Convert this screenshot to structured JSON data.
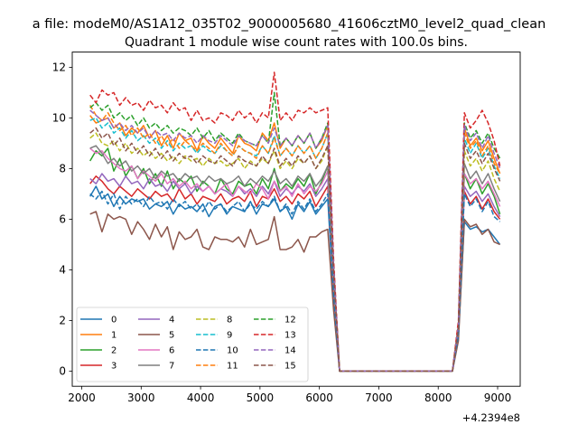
{
  "figure": {
    "suptitle": "a file: modeM0/AS1A12_035T02_9000005680_41606cztM0_level2_quad_clean",
    "title": "Quadrant 1 module wise count rates with 100.0s bins.",
    "offset_label": "+4.2394e8"
  },
  "chart_data": {
    "type": "line",
    "title": "Quadrant 1 module wise count rates with 100.0s bins.",
    "xlabel": "",
    "ylabel": "",
    "x_offset": 423940000,
    "xlim": [
      1840,
      9380
    ],
    "ylim": [
      -0.6,
      12.6
    ],
    "xticks": [
      2000,
      3000,
      4000,
      5000,
      6000,
      7000,
      8000,
      9000
    ],
    "yticks": [
      0,
      2,
      4,
      6,
      8,
      10,
      12
    ],
    "legend": "bottom-left",
    "grid": false,
    "x": [
      2140,
      2240,
      2340,
      2440,
      2540,
      2640,
      2740,
      2840,
      2940,
      3040,
      3140,
      3240,
      3340,
      3440,
      3540,
      3640,
      3740,
      3840,
      3940,
      4040,
      4140,
      4240,
      4340,
      4440,
      4540,
      4640,
      4740,
      4840,
      4940,
      5040,
      5140,
      5240,
      5340,
      5440,
      5540,
      5640,
      5740,
      5840,
      5940,
      6040,
      6140,
      6240,
      6340,
      6440,
      6540,
      6640,
      6740,
      6840,
      6940,
      7040,
      7140,
      7240,
      7340,
      7440,
      7540,
      7640,
      7740,
      7840,
      7940,
      8040,
      8140,
      8240,
      8340,
      8440,
      8540,
      8640,
      8740,
      8840,
      8940,
      9040
    ],
    "zero_segment": {
      "from_x": 6340,
      "to_x": 8240,
      "value": 0
    },
    "series": [
      {
        "name": "0",
        "color": "#1f77b4",
        "dash": "solid",
        "values": [
          6.9,
          7.3,
          6.8,
          7.0,
          6.5,
          6.9,
          6.6,
          6.8,
          6.7,
          6.8,
          6.4,
          6.6,
          6.5,
          6.7,
          6.2,
          6.6,
          6.4,
          6.5,
          6.3,
          6.6,
          6.1,
          6.5,
          6.6,
          6.2,
          6.5,
          6.4,
          6.3,
          6.7,
          6.2,
          6.6,
          6.5,
          6.8,
          6.3,
          6.5,
          6.0,
          6.6,
          6.3,
          6.7,
          6.2,
          6.5,
          6.8,
          2.9,
          0,
          0,
          0,
          0,
          0,
          0,
          0,
          0,
          0,
          0,
          0,
          0,
          0,
          0,
          0,
          0,
          0,
          0,
          0,
          0,
          1.4,
          5.9,
          5.6,
          5.7,
          5.5,
          5.6,
          5.3,
          5.0
        ]
      },
      {
        "name": "1",
        "color": "#ff7f0e",
        "dash": "solid",
        "values": [
          10.1,
          9.8,
          9.9,
          10.0,
          9.6,
          9.8,
          9.3,
          9.6,
          9.4,
          9.7,
          9.2,
          9.5,
          8.9,
          9.3,
          8.8,
          9.4,
          9.1,
          9.2,
          8.7,
          9.3,
          9.0,
          8.8,
          9.2,
          8.9,
          8.6,
          9.3,
          9.0,
          8.9,
          8.7,
          9.4,
          9.1,
          9.8,
          8.8,
          9.2,
          8.9,
          9.3,
          9.0,
          9.4,
          8.8,
          9.1,
          9.7,
          3.7,
          0,
          0,
          0,
          0,
          0,
          0,
          0,
          0,
          0,
          0,
          0,
          0,
          0,
          0,
          0,
          0,
          0,
          0,
          0,
          0,
          1.8,
          9.6,
          8.9,
          9.2,
          8.7,
          9.1,
          8.4,
          7.8
        ]
      },
      {
        "name": "2",
        "color": "#2ca02c",
        "dash": "solid",
        "values": [
          8.3,
          8.7,
          8.5,
          8.8,
          7.9,
          8.4,
          7.7,
          8.1,
          7.6,
          8.0,
          7.4,
          7.8,
          7.3,
          7.9,
          7.2,
          7.6,
          7.4,
          7.7,
          7.1,
          7.5,
          7.3,
          7.0,
          7.6,
          7.2,
          7.0,
          7.5,
          7.3,
          7.4,
          7.0,
          7.6,
          7.2,
          8.0,
          7.1,
          7.4,
          7.2,
          7.6,
          7.3,
          7.8,
          7.0,
          7.5,
          8.1,
          3.4,
          0,
          0,
          0,
          0,
          0,
          0,
          0,
          0,
          0,
          0,
          0,
          0,
          0,
          0,
          0,
          0,
          0,
          0,
          0,
          0,
          1.6,
          7.8,
          7.2,
          7.6,
          7.0,
          7.4,
          6.9,
          6.2
        ]
      },
      {
        "name": "3",
        "color": "#d62728",
        "dash": "solid",
        "values": [
          7.4,
          7.7,
          7.5,
          7.2,
          7.0,
          7.3,
          7.1,
          6.9,
          7.2,
          7.0,
          6.8,
          7.1,
          6.9,
          7.0,
          6.7,
          7.2,
          6.8,
          7.0,
          6.6,
          6.9,
          6.8,
          6.7,
          7.0,
          6.6,
          6.8,
          6.9,
          6.7,
          7.1,
          6.5,
          6.9,
          6.8,
          7.2,
          6.7,
          6.9,
          6.6,
          7.0,
          6.8,
          7.1,
          6.5,
          6.9,
          7.3,
          3.1,
          0,
          0,
          0,
          0,
          0,
          0,
          0,
          0,
          0,
          0,
          0,
          0,
          0,
          0,
          0,
          0,
          0,
          0,
          0,
          0,
          1.5,
          7.1,
          6.6,
          6.9,
          6.4,
          6.8,
          6.3,
          6.0
        ]
      },
      {
        "name": "4",
        "color": "#9467bd",
        "dash": "solid",
        "values": [
          7.6,
          7.4,
          7.8,
          7.5,
          7.6,
          7.3,
          7.7,
          7.4,
          7.5,
          7.2,
          7.6,
          7.3,
          7.4,
          7.1,
          7.5,
          7.2,
          7.4,
          7.0,
          7.3,
          7.1,
          7.3,
          7.0,
          7.2,
          7.1,
          6.9,
          7.3,
          7.0,
          7.2,
          6.9,
          7.3,
          7.0,
          7.5,
          6.9,
          7.2,
          7.0,
          7.3,
          7.1,
          7.4,
          6.9,
          7.2,
          7.6,
          3.2,
          0,
          0,
          0,
          0,
          0,
          0,
          0,
          0,
          0,
          0,
          0,
          0,
          0,
          0,
          0,
          0,
          0,
          0,
          0,
          0,
          1.5,
          7.3,
          6.9,
          7.1,
          6.7,
          7.0,
          6.5,
          6.1
        ]
      },
      {
        "name": "5",
        "color": "#8c564b",
        "dash": "solid",
        "values": [
          6.2,
          6.3,
          5.5,
          6.2,
          6.0,
          6.1,
          6.0,
          5.4,
          5.9,
          5.6,
          5.2,
          5.8,
          5.3,
          5.7,
          4.8,
          5.5,
          5.2,
          5.3,
          5.6,
          4.9,
          4.8,
          5.3,
          5.2,
          5.2,
          5.1,
          5.3,
          4.9,
          5.6,
          5.0,
          5.1,
          5.2,
          6.1,
          4.8,
          4.8,
          4.9,
          5.2,
          4.7,
          5.3,
          5.3,
          5.5,
          5.6,
          2.4,
          0,
          0,
          0,
          0,
          0,
          0,
          0,
          0,
          0,
          0,
          0,
          0,
          0,
          0,
          0,
          0,
          0,
          0,
          0,
          0,
          1.2,
          6.0,
          5.7,
          5.8,
          5.4,
          5.6,
          5.1,
          5.0
        ]
      },
      {
        "name": "6",
        "color": "#e377c2",
        "dash": "solid",
        "values": [
          8.8,
          8.6,
          8.7,
          8.4,
          8.2,
          8.0,
          7.9,
          8.1,
          7.6,
          7.9,
          7.7,
          7.5,
          7.8,
          7.4,
          7.6,
          7.3,
          7.5,
          7.2,
          7.4,
          7.1,
          7.3,
          7.0,
          7.2,
          7.4,
          6.9,
          7.3,
          7.1,
          7.0,
          7.4,
          7.2,
          6.8,
          7.5,
          7.1,
          7.3,
          6.9,
          7.4,
          7.0,
          7.3,
          7.1,
          7.4,
          7.9,
          3.4,
          0,
          0,
          0,
          0,
          0,
          0,
          0,
          0,
          0,
          0,
          0,
          0,
          0,
          0,
          0,
          0,
          0,
          0,
          0,
          0,
          1.6,
          7.8,
          7.4,
          7.6,
          7.2,
          7.5,
          7.0,
          6.5
        ]
      },
      {
        "name": "7",
        "color": "#7f7f7f",
        "dash": "solid",
        "values": [
          8.8,
          8.9,
          8.6,
          8.2,
          8.4,
          8.1,
          8.3,
          7.9,
          8.1,
          7.8,
          8.0,
          7.6,
          7.9,
          7.7,
          7.8,
          7.5,
          7.8,
          7.6,
          7.7,
          7.4,
          7.7,
          7.5,
          7.6,
          7.4,
          7.5,
          7.7,
          7.3,
          7.6,
          7.4,
          7.7,
          7.5,
          7.9,
          7.4,
          7.6,
          7.3,
          7.7,
          7.5,
          7.8,
          7.3,
          7.6,
          8.1,
          3.5,
          0,
          0,
          0,
          0,
          0,
          0,
          0,
          0,
          0,
          0,
          0,
          0,
          0,
          0,
          0,
          0,
          0,
          0,
          0,
          0,
          1.6,
          8.2,
          7.6,
          7.9,
          7.4,
          7.8,
          7.2,
          6.7
        ]
      },
      {
        "name": "8",
        "color": "#bcbd22",
        "dash": "dashed",
        "values": [
          9.2,
          9.4,
          9.0,
          8.9,
          9.1,
          8.7,
          9.0,
          8.6,
          8.8,
          8.5,
          8.7,
          8.4,
          8.6,
          8.3,
          8.5,
          8.2,
          8.5,
          8.3,
          8.4,
          8.1,
          8.4,
          8.2,
          8.3,
          8.1,
          8.2,
          8.4,
          8.0,
          8.3,
          8.1,
          8.4,
          8.2,
          8.7,
          8.0,
          8.3,
          8.0,
          8.4,
          8.2,
          8.5,
          8.0,
          8.3,
          8.9,
          3.8,
          0,
          0,
          0,
          0,
          0,
          0,
          0,
          0,
          0,
          0,
          0,
          0,
          0,
          0,
          0,
          0,
          0,
          0,
          0,
          0,
          1.7,
          8.7,
          8.1,
          8.4,
          7.9,
          8.3,
          7.6,
          7.1
        ]
      },
      {
        "name": "9",
        "color": "#17becf",
        "dash": "dashed",
        "values": [
          9.9,
          10.0,
          9.6,
          9.8,
          9.4,
          9.6,
          9.2,
          9.5,
          9.1,
          9.3,
          9.0,
          9.2,
          8.8,
          9.1,
          8.7,
          9.0,
          8.8,
          8.9,
          8.6,
          8.9,
          8.7,
          8.6,
          8.9,
          8.7,
          8.5,
          8.9,
          8.7,
          8.6,
          8.5,
          8.9,
          8.6,
          9.3,
          8.5,
          8.8,
          8.5,
          8.9,
          8.6,
          8.9,
          8.4,
          8.8,
          9.4,
          4.0,
          0,
          0,
          0,
          0,
          0,
          0,
          0,
          0,
          0,
          0,
          0,
          0,
          0,
          0,
          0,
          0,
          0,
          0,
          0,
          0,
          1.8,
          9.2,
          8.6,
          9.0,
          8.4,
          8.8,
          8.1,
          7.6
        ]
      },
      {
        "name": "10",
        "color": "#1f77b4",
        "dash": "dashed",
        "values": [
          7.0,
          6.8,
          7.1,
          6.6,
          7.0,
          6.4,
          6.9,
          6.6,
          6.8,
          6.5,
          6.9,
          6.6,
          6.7,
          6.4,
          6.8,
          6.5,
          6.7,
          6.4,
          6.6,
          6.3,
          6.7,
          6.4,
          6.6,
          6.3,
          6.5,
          6.7,
          6.3,
          6.6,
          6.4,
          6.7,
          6.5,
          6.9,
          6.3,
          6.6,
          6.2,
          6.7,
          6.4,
          6.8,
          6.3,
          6.6,
          7.0,
          3.0,
          0,
          0,
          0,
          0,
          0,
          0,
          0,
          0,
          0,
          0,
          0,
          0,
          0,
          0,
          0,
          0,
          0,
          0,
          0,
          0,
          1.4,
          7.0,
          6.5,
          6.8,
          6.3,
          6.7,
          6.1,
          5.9
        ]
      },
      {
        "name": "11",
        "color": "#ff7f0e",
        "dash": "dashed",
        "values": [
          10.5,
          10.1,
          9.9,
          10.2,
          9.8,
          9.5,
          9.7,
          9.3,
          9.6,
          9.2,
          9.4,
          9.0,
          9.3,
          8.9,
          9.2,
          8.8,
          9.1,
          8.9,
          8.7,
          9.0,
          8.8,
          8.6,
          9.0,
          8.7,
          8.5,
          8.9,
          8.7,
          8.6,
          8.4,
          8.9,
          8.6,
          9.2,
          8.5,
          8.8,
          8.5,
          8.9,
          8.6,
          8.9,
          8.4,
          8.8,
          9.4,
          4.0,
          0,
          0,
          0,
          0,
          0,
          0,
          0,
          0,
          0,
          0,
          0,
          0,
          0,
          0,
          0,
          0,
          0,
          0,
          0,
          0,
          1.8,
          9.4,
          8.8,
          9.1,
          8.5,
          8.9,
          8.2,
          7.8
        ]
      },
      {
        "name": "12",
        "color": "#2ca02c",
        "dash": "dashed",
        "values": [
          10.4,
          10.6,
          10.3,
          10.5,
          10.0,
          10.2,
          9.9,
          10.1,
          9.7,
          10.0,
          9.6,
          9.8,
          9.5,
          9.7,
          9.4,
          9.6,
          9.5,
          9.3,
          9.6,
          9.2,
          9.5,
          9.1,
          9.4,
          9.2,
          9.0,
          9.4,
          9.1,
          9.0,
          8.9,
          9.3,
          9.0,
          11.0,
          8.9,
          9.2,
          8.9,
          9.3,
          9.0,
          9.4,
          8.8,
          9.2,
          9.8,
          4.2,
          0,
          0,
          0,
          0,
          0,
          0,
          0,
          0,
          0,
          0,
          0,
          0,
          0,
          0,
          0,
          0,
          0,
          0,
          0,
          0,
          1.9,
          9.8,
          9.2,
          9.5,
          9.0,
          9.4,
          8.8,
          8.4
        ]
      },
      {
        "name": "13",
        "color": "#d62728",
        "dash": "dashed",
        "values": [
          10.9,
          10.6,
          11.1,
          10.9,
          11.0,
          10.5,
          10.8,
          10.5,
          10.6,
          10.3,
          10.7,
          10.4,
          10.5,
          10.2,
          10.6,
          10.3,
          10.4,
          9.9,
          10.3,
          9.9,
          10.0,
          9.8,
          10.2,
          10.1,
          9.9,
          10.3,
          10.0,
          10.2,
          9.8,
          10.2,
          10.0,
          11.8,
          9.9,
          10.2,
          9.9,
          10.3,
          10.2,
          10.4,
          10.2,
          10.3,
          10.4,
          4.4,
          0,
          0,
          0,
          0,
          0,
          0,
          0,
          0,
          0,
          0,
          0,
          0,
          0,
          0,
          0,
          0,
          0,
          0,
          0,
          0,
          2.0,
          10.2,
          9.6,
          9.9,
          10.3,
          9.8,
          9.1,
          8.1
        ]
      },
      {
        "name": "14",
        "color": "#9467bd",
        "dash": "dashed",
        "values": [
          10.3,
          10.1,
          9.9,
          10.0,
          9.6,
          9.8,
          9.5,
          9.7,
          9.4,
          9.6,
          9.2,
          9.5,
          9.3,
          9.4,
          9.1,
          9.4,
          9.2,
          9.3,
          9.0,
          9.3,
          9.1,
          9.0,
          9.3,
          9.1,
          8.9,
          9.3,
          9.1,
          9.0,
          8.9,
          9.3,
          9.0,
          9.6,
          8.9,
          9.2,
          8.9,
          9.3,
          9.0,
          9.4,
          8.8,
          9.2,
          9.7,
          4.1,
          0,
          0,
          0,
          0,
          0,
          0,
          0,
          0,
          0,
          0,
          0,
          0,
          0,
          0,
          0,
          0,
          0,
          0,
          0,
          0,
          1.8,
          9.7,
          9.1,
          9.4,
          8.8,
          9.3,
          8.6,
          8.0
        ]
      },
      {
        "name": "15",
        "color": "#8c564b",
        "dash": "dashed",
        "values": [
          9.4,
          9.6,
          9.2,
          9.4,
          8.9,
          9.2,
          8.7,
          9.0,
          8.6,
          8.9,
          8.5,
          8.8,
          8.4,
          8.7,
          8.3,
          8.6,
          8.4,
          8.5,
          8.2,
          8.5,
          8.3,
          8.2,
          8.5,
          8.3,
          8.1,
          8.5,
          8.3,
          8.2,
          8.1,
          8.5,
          8.2,
          8.8,
          8.1,
          8.4,
          8.1,
          8.5,
          8.2,
          8.5,
          8.0,
          8.4,
          8.9,
          3.8,
          0,
          0,
          0,
          0,
          0,
          0,
          0,
          0,
          0,
          0,
          0,
          0,
          0,
          0,
          0,
          0,
          0,
          0,
          0,
          0,
          1.7,
          9.0,
          8.4,
          8.7,
          8.2,
          8.6,
          8.0,
          7.5
        ]
      }
    ]
  }
}
